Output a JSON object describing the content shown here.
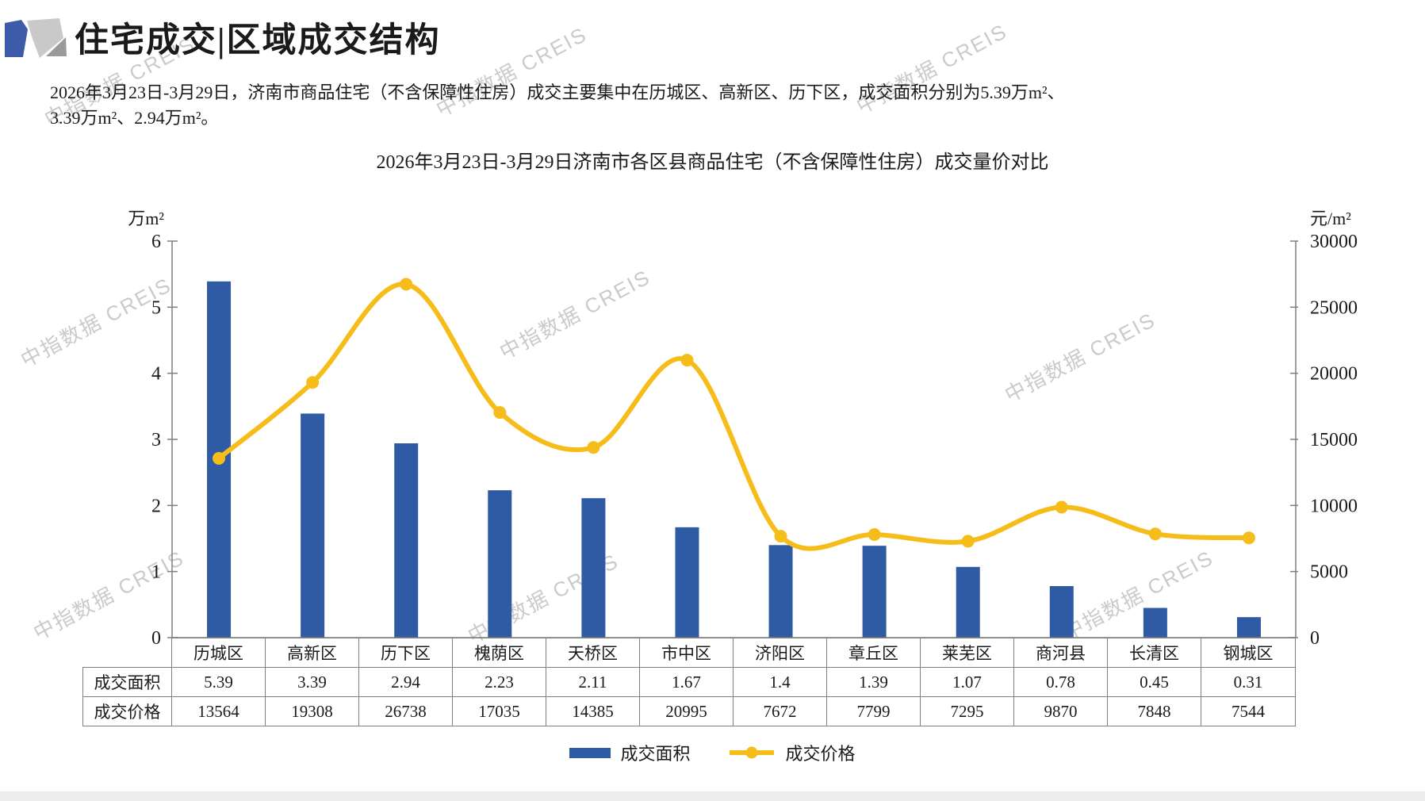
{
  "page": {
    "title": "住宅成交|区域成交结构",
    "summary_line1": "2026年3月23日-3月29日，济南市商品住宅（不含保障性住房）成交主要集中在历城区、高新区、历下区，成交面积分别为5.39万m²、",
    "summary_line2": "3.39万m²、2.94万m²。",
    "watermark": "中指数据 CREIS"
  },
  "chart_data": {
    "type": "bar+line",
    "title": "2026年3月23日-3月29日济南市各区县商品住宅（不含保障性住房）成交量价对比",
    "categories": [
      "历城区",
      "高新区",
      "历下区",
      "槐荫区",
      "天桥区",
      "市中区",
      "济阳区",
      "章丘区",
      "莱芜区",
      "商河县",
      "长清区",
      "钢城区"
    ],
    "series": [
      {
        "name": "成交面积",
        "type": "bar",
        "axis": "left",
        "color": "#2E5BA4",
        "values": [
          5.39,
          3.39,
          2.94,
          2.23,
          2.11,
          1.67,
          1.4,
          1.39,
          1.07,
          0.78,
          0.45,
          0.31
        ]
      },
      {
        "name": "成交价格",
        "type": "line",
        "axis": "right",
        "color": "#F6BC1A",
        "values": [
          13564,
          19308,
          26738,
          17035,
          14385,
          20995,
          7672,
          7799,
          7295,
          9870,
          7848,
          7544
        ]
      }
    ],
    "left_axis": {
      "unit_label": "万m²",
      "min": 0,
      "max": 6,
      "step": 1,
      "ticks": [
        0,
        1,
        2,
        3,
        4,
        5,
        6
      ]
    },
    "right_axis": {
      "unit_label": "元/m²",
      "min": 0,
      "max": 30000,
      "step": 5000,
      "ticks": [
        0,
        5000,
        10000,
        15000,
        20000,
        25000,
        30000
      ]
    },
    "table_row_labels": [
      "成交面积",
      "成交价格"
    ],
    "legend": [
      "成交面积",
      "成交价格"
    ],
    "axis_color": "#7F7F7F",
    "grid": "off",
    "legend_position": "bottom"
  }
}
